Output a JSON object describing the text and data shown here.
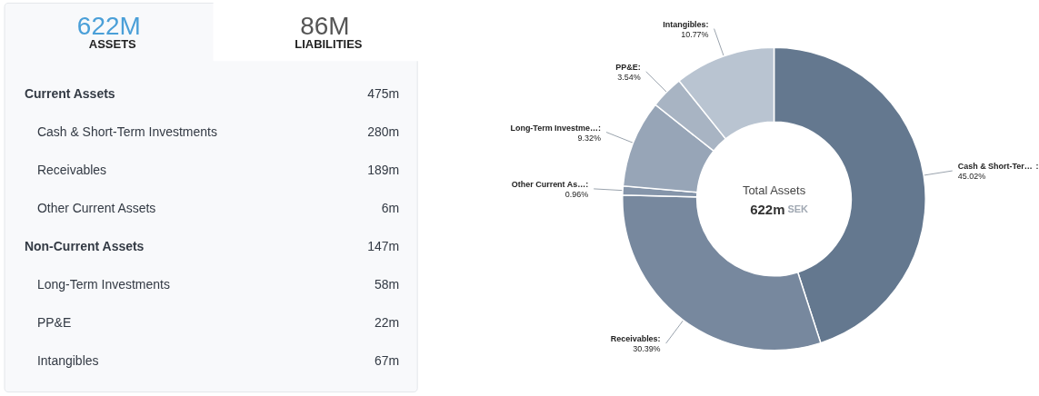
{
  "chart_data": [
    {
      "type": "other",
      "annotations": [
        "622M",
        "ASSETS",
        "86M",
        "LIABILITIES",
        "Current Assets",
        "475m",
        "Cash & Short-Term Investments",
        "280m",
        "Receivables",
        "189m",
        "Other Current Assets",
        "6m",
        "Non-Current Assets",
        "147m",
        "Long-Term Investments",
        "58m",
        "PP&E",
        "22m",
        "Intangibles",
        "67m"
      ]
    },
    {
      "type": "donut",
      "categories": [
        "Cash & Short-Ter…",
        "Receivables",
        "Other Current As…",
        "Long-Term Investme…",
        "PP&E",
        "Intangibles"
      ],
      "values": [
        45.02,
        30.39,
        0.96,
        9.32,
        3.54,
        10.77
      ],
      "value_labels": [
        "45.02%",
        "30.39%",
        "0.96%",
        "9.32%",
        "3.54%",
        "10.77%"
      ],
      "colors": [
        "#64788f",
        "#77889e",
        "#8595aa",
        "#97a5b7",
        "#a8b4c3",
        "#b9c4d1"
      ],
      "annotations": [
        "Total Assets",
        "622m",
        "SEK",
        ":"
      ]
    }
  ]
}
